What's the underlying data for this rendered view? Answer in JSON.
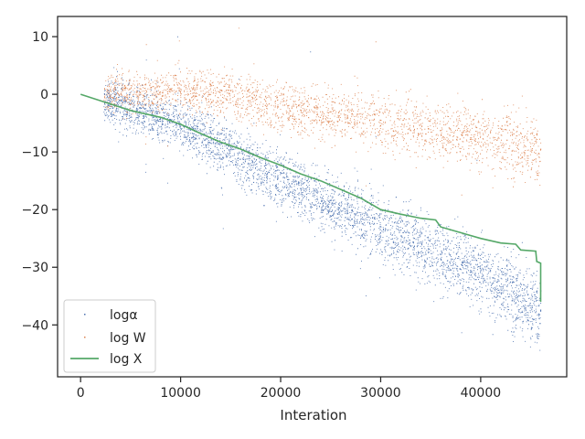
{
  "chart_data": {
    "type": "scatter",
    "title": "",
    "xlabel": "Interation",
    "ylabel": "",
    "xlim": [
      -2300,
      48600
    ],
    "ylim": [
      -49,
      13.5
    ],
    "xticks": [
      0,
      10000,
      20000,
      30000,
      40000
    ],
    "xtick_labels": [
      "0",
      "10000",
      "20000",
      "30000",
      "40000"
    ],
    "yticks": [
      10,
      0,
      -10,
      -20,
      -30,
      -40
    ],
    "ytick_labels": [
      "10",
      "0",
      "−10",
      "−20",
      "−30",
      "−40"
    ],
    "grid": false,
    "legend_position": "lower-left",
    "series": [
      {
        "name": "logα",
        "kind": "scatter",
        "color": "#4c72b0",
        "x_range": [
          2300,
          46000
        ],
        "trend": {
          "x": [
            2300,
            10000,
            20000,
            30000,
            40000,
            46000
          ],
          "y": [
            -1,
            -5,
            -15,
            -23,
            -31,
            -38
          ]
        },
        "spread": 2.6
      },
      {
        "name": "log W",
        "kind": "scatter",
        "color": "#dd8452",
        "x_range": [
          2300,
          46000
        ],
        "trend": {
          "x": [
            2300,
            10000,
            15000,
            20000,
            30000,
            40000,
            46000
          ],
          "y": [
            0,
            1,
            0,
            -2.5,
            -4.5,
            -7.5,
            -10
          ]
        },
        "spread": 2.3
      },
      {
        "name": "log X",
        "kind": "line",
        "color": "#55a868",
        "x": [
          0,
          2300,
          5000,
          8000,
          10000,
          12000,
          14000,
          16000,
          18000,
          20000,
          22000,
          24000,
          26000,
          28000,
          30000,
          32000,
          34000,
          35500,
          36000,
          38000,
          40000,
          42000,
          43500,
          44000,
          45500,
          45600,
          46000,
          46000
        ],
        "y": [
          0,
          -1.3,
          -2.8,
          -4,
          -5.2,
          -6.8,
          -8.3,
          -9.5,
          -11,
          -12.3,
          -13.8,
          -15,
          -16.5,
          -18,
          -20,
          -20.8,
          -21.5,
          -21.8,
          -23,
          -24,
          -25,
          -25.8,
          -26,
          -27,
          -27.2,
          -29,
          -29.3,
          -36
        ]
      }
    ]
  }
}
